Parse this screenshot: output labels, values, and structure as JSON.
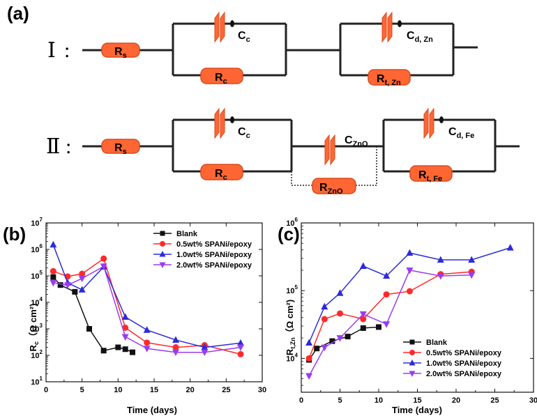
{
  "circuits": {
    "panel_label": "(a)",
    "colors": {
      "resistor": "#ff6633",
      "resistor_edge": "#d94a1c",
      "cap": "#ff6633",
      "wire": "#222222"
    },
    "one": {
      "roman": "Ⅰ",
      "colon": ":",
      "Rs": {
        "main": "R",
        "sub": "s"
      },
      "Cc": {
        "main": "C",
        "sub": "c"
      },
      "Rc": {
        "main": "R",
        "sub": "c"
      },
      "Cd": {
        "main": "C",
        "sub": "d, Zn"
      },
      "Rt": {
        "main": "R",
        "sub": "t, Zn"
      }
    },
    "two": {
      "roman": "Ⅱ",
      "colon": ":",
      "Rs": {
        "main": "R",
        "sub": "s"
      },
      "Cc": {
        "main": "C",
        "sub": "c"
      },
      "Rc": {
        "main": "R",
        "sub": "c"
      },
      "CZnO": {
        "main": "C",
        "sub": "ZnO"
      },
      "RZnO": {
        "main": "R",
        "sub": "ZnO"
      },
      "Cd": {
        "main": "C",
        "sub": "d, Fe"
      },
      "Rt": {
        "main": "R",
        "sub": "t, Fe"
      }
    }
  },
  "chart_data": [
    {
      "panel_label": "(b)",
      "type": "line",
      "xlabel": "Time (days)",
      "ylabel": {
        "main": "R",
        "sub": "c",
        "unit": "（Ω cm²)"
      },
      "xlim": [
        0,
        30
      ],
      "xticks": [
        0,
        5,
        10,
        15,
        20,
        25,
        30
      ],
      "yscale": "log",
      "ylim_exp": [
        1,
        7
      ],
      "legend_position": "top-right",
      "series": [
        {
          "name": "Blank",
          "color": "#111111",
          "marker": "square",
          "x": [
            1,
            2,
            4,
            6,
            8,
            10,
            11,
            12
          ],
          "y": [
            90000,
            45000,
            25000,
            1000,
            150,
            200,
            170,
            130
          ]
        },
        {
          "name": "0.5wt% SPANi/epoxy",
          "color": "#ff2a2a",
          "marker": "circle",
          "x": [
            1,
            3,
            5,
            8,
            11,
            14,
            18,
            22,
            27
          ],
          "y": [
            150000,
            95000,
            120000,
            450000,
            1100,
            300,
            200,
            240,
            110
          ]
        },
        {
          "name": "1.0wt% SPANi/epoxy",
          "color": "#2b2bd9",
          "marker": "triangle-up",
          "x": [
            1,
            3,
            5,
            8,
            11,
            14,
            18,
            22,
            27
          ],
          "y": [
            1500000,
            55000,
            30000,
            220000,
            2800,
            900,
            380,
            200,
            290
          ]
        },
        {
          "name": "2.0wt% SPANi/epoxy",
          "color": "#9a3cf0",
          "marker": "triangle-down",
          "x": [
            1,
            3,
            5,
            8,
            11,
            14,
            18,
            22,
            27
          ],
          "y": [
            55000,
            45000,
            80000,
            230000,
            500,
            180,
            130,
            130,
            200
          ]
        }
      ]
    },
    {
      "panel_label": "(c)",
      "type": "line",
      "xlabel": "Time (days)",
      "ylabel": {
        "main": "R",
        "sub": "t,Zn",
        "unit": "（Ω cm²)"
      },
      "xlim": [
        0,
        30
      ],
      "xticks": [
        0,
        5,
        10,
        15,
        20,
        25,
        30
      ],
      "yscale": "log",
      "ylim_exp": [
        3.5,
        6
      ],
      "yticks_exp": [
        4,
        5,
        6
      ],
      "legend_position": "bottom-right",
      "series": [
        {
          "name": "Blank",
          "color": "#111111",
          "marker": "square",
          "x": [
            1,
            2,
            4,
            6,
            8,
            10
          ],
          "y": [
            9500,
            14000,
            18000,
            21000,
            28000,
            29000
          ]
        },
        {
          "name": "0.5wt% SPANi/epoxy",
          "color": "#ff2a2a",
          "marker": "circle",
          "x": [
            1,
            3,
            5,
            8,
            11,
            14,
            18,
            22
          ],
          "y": [
            10000,
            38000,
            46000,
            38000,
            88000,
            98000,
            175000,
            190000
          ]
        },
        {
          "name": "1.0wt% SPANi/epoxy",
          "color": "#2b2bd9",
          "marker": "triangle-up",
          "x": [
            1,
            3,
            5,
            8,
            11,
            14,
            18,
            22,
            27
          ],
          "y": [
            17000,
            58000,
            92000,
            230000,
            165000,
            360000,
            285000,
            285000,
            430000
          ]
        },
        {
          "name": "2.0wt% SPANi/epoxy",
          "color": "#9a3cf0",
          "marker": "triangle-down",
          "x": [
            1,
            3,
            5,
            8,
            11,
            14,
            18,
            22
          ],
          "y": [
            5500,
            14500,
            20000,
            45000,
            32000,
            200000,
            165000,
            170000
          ]
        }
      ]
    }
  ]
}
